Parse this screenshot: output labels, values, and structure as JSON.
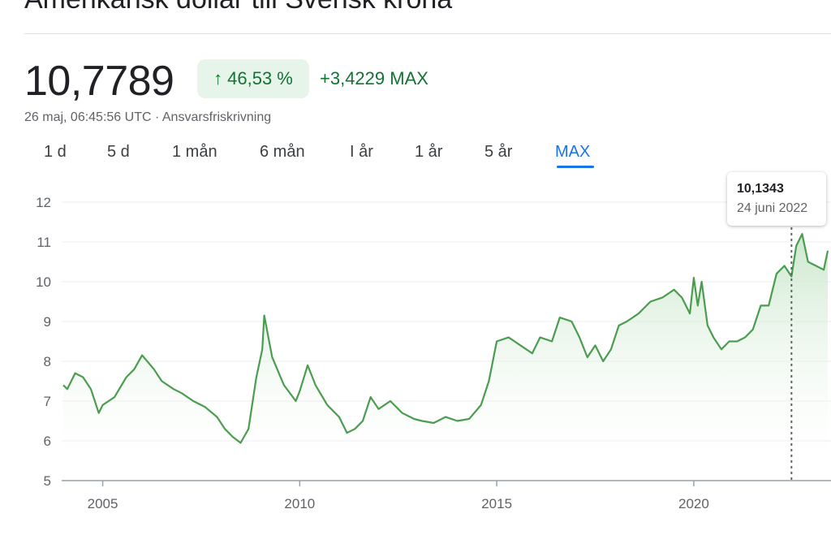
{
  "header": {
    "title": "Amerikansk dollar till Svensk krona",
    "price": "10,7789",
    "change_pct": "46,53 %",
    "change_arrow": "↑",
    "change_abs": "+3,4229 MAX",
    "timestamp": "26 maj, 06:45:56 UTC",
    "disclaimer_sep": " · ",
    "disclaimer": "Ansvarsfriskrivning"
  },
  "tabs": [
    "1 d",
    "5 d",
    "1 mån",
    "6 mån",
    "I år",
    "1 år",
    "5 år",
    "MAX"
  ],
  "active_tab": "MAX",
  "tooltip": {
    "value": "10,1343",
    "date": "24 juni 2022"
  },
  "colors": {
    "line": "#4a9d4f",
    "fill_top": "#dcefdc",
    "positive": "#137333",
    "accent": "#1a73e8"
  },
  "chart_data": {
    "type": "area",
    "title": "",
    "xlabel": "",
    "ylabel": "",
    "ylim": [
      5,
      12
    ],
    "xlim": [
      2004.0,
      2023.4
    ],
    "y_ticks": [
      "5",
      "6",
      "7",
      "8",
      "9",
      "10",
      "11",
      "12"
    ],
    "x_ticks": [
      "2005",
      "2010",
      "2015",
      "2020"
    ],
    "grid": true,
    "marker": {
      "x": 2022.48,
      "label": "10,1343",
      "date": "24 juni 2022"
    },
    "series": [
      {
        "x": [
          2004.0,
          2004.1,
          2004.3,
          2004.5,
          2004.7,
          2004.9,
          2005.0,
          2005.3,
          2005.6,
          2005.8,
          2006.0,
          2006.3,
          2006.5,
          2006.8,
          2007.0,
          2007.3,
          2007.6,
          2007.9,
          2008.1,
          2008.3,
          2008.5,
          2008.7,
          2008.9,
          2009.05,
          2009.1,
          2009.3,
          2009.6,
          2009.9,
          2010.0,
          2010.2,
          2010.4,
          2010.7,
          2011.0,
          2011.2,
          2011.4,
          2011.6,
          2011.8,
          2012.0,
          2012.3,
          2012.6,
          2012.9,
          2013.1,
          2013.4,
          2013.7,
          2014.0,
          2014.3,
          2014.6,
          2014.8,
          2015.0,
          2015.3,
          2015.6,
          2015.9,
          2016.1,
          2016.4,
          2016.6,
          2016.9,
          2017.1,
          2017.3,
          2017.5,
          2017.7,
          2017.9,
          2018.1,
          2018.3,
          2018.6,
          2018.9,
          2019.2,
          2019.5,
          2019.7,
          2019.9,
          2020.0,
          2020.1,
          2020.2,
          2020.35,
          2020.5,
          2020.7,
          2020.9,
          2021.1,
          2021.3,
          2021.5,
          2021.7,
          2021.9,
          2022.1,
          2022.3,
          2022.48,
          2022.6,
          2022.75,
          2022.9,
          2023.1,
          2023.3,
          2023.4
        ],
        "values": [
          7.4,
          7.3,
          7.7,
          7.6,
          7.3,
          6.7,
          6.9,
          7.1,
          7.6,
          7.8,
          8.15,
          7.8,
          7.5,
          7.3,
          7.2,
          7.0,
          6.85,
          6.6,
          6.3,
          6.1,
          5.95,
          6.3,
          7.6,
          8.3,
          9.15,
          8.1,
          7.4,
          7.0,
          7.25,
          7.9,
          7.4,
          6.9,
          6.6,
          6.2,
          6.3,
          6.5,
          7.1,
          6.8,
          7.0,
          6.7,
          6.55,
          6.5,
          6.45,
          6.6,
          6.5,
          6.55,
          6.9,
          7.5,
          8.5,
          8.6,
          8.4,
          8.2,
          8.6,
          8.5,
          9.1,
          9.0,
          8.6,
          8.1,
          8.4,
          8.0,
          8.3,
          8.9,
          9.0,
          9.2,
          9.5,
          9.6,
          9.8,
          9.6,
          9.2,
          10.1,
          9.4,
          10.0,
          8.9,
          8.6,
          8.3,
          8.5,
          8.5,
          8.6,
          8.8,
          9.4,
          9.4,
          10.2,
          10.4,
          10.13,
          10.9,
          11.2,
          10.5,
          10.4,
          10.3,
          10.78
        ]
      }
    ]
  }
}
